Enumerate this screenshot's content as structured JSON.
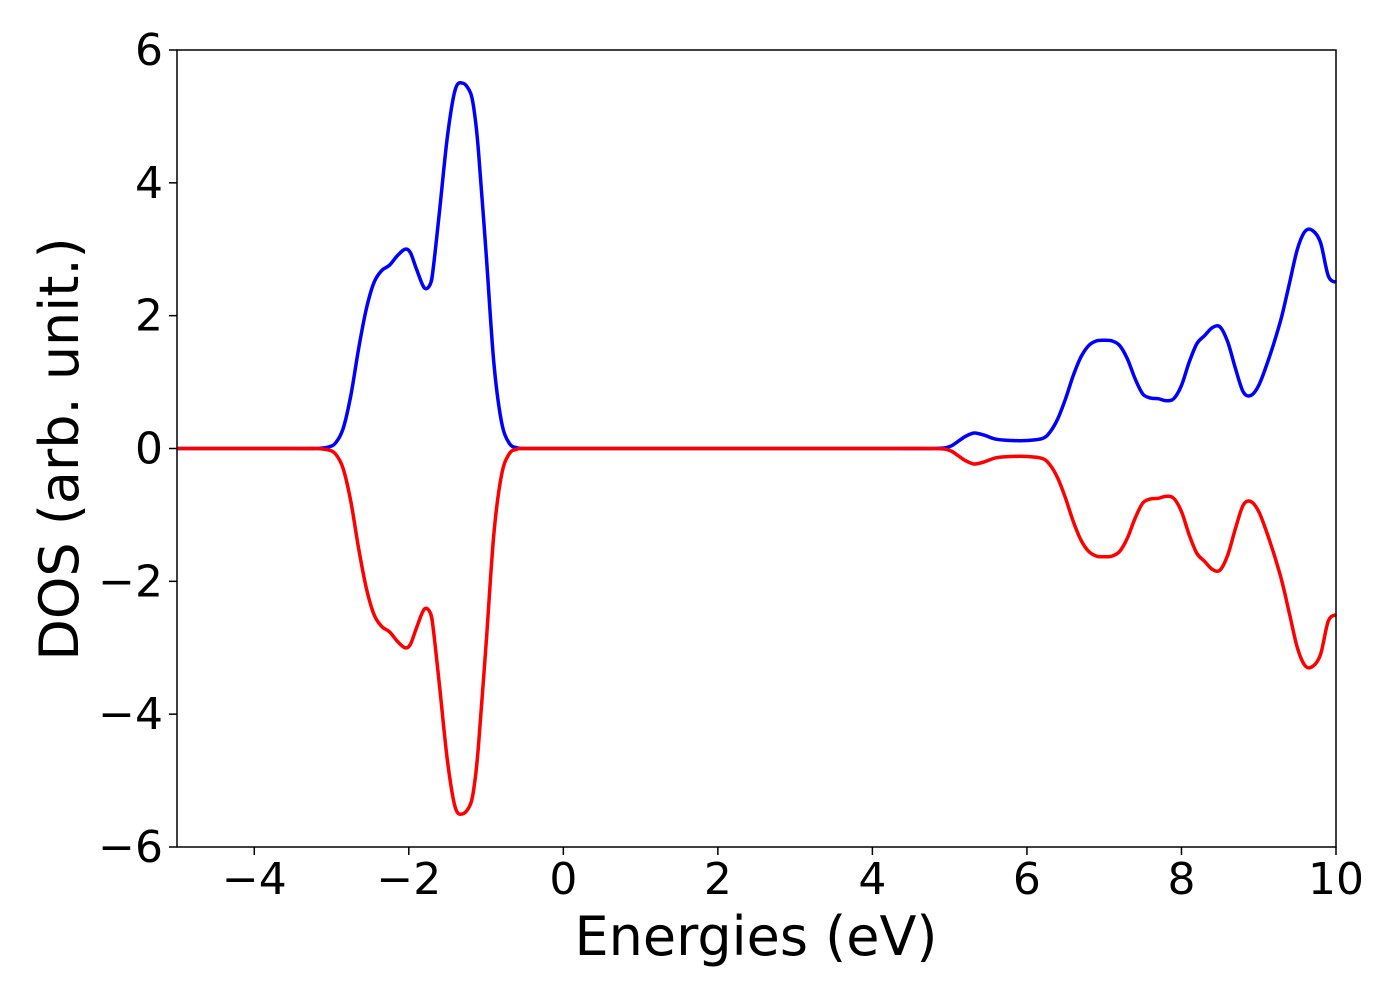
{
  "chart_data": {
    "type": "line",
    "title": "",
    "xlabel": "Energies (eV)",
    "ylabel": "DOS (arb. unit.)",
    "xlim": [
      -5,
      10
    ],
    "ylim": [
      -6,
      6
    ],
    "xticks": [
      -4,
      -2,
      0,
      2,
      4,
      6,
      8,
      10
    ],
    "xtick_labels": [
      "−4",
      "−2",
      "0",
      "2",
      "4",
      "6",
      "8",
      "10"
    ],
    "yticks": [
      -6,
      -4,
      -2,
      0,
      2,
      4,
      6
    ],
    "ytick_labels": [
      "−6",
      "−4",
      "−2",
      "0",
      "2",
      "4",
      "6"
    ],
    "grid": false,
    "legend": "none",
    "series": [
      {
        "color": "#0000ff",
        "x": [
          -5.0,
          -3.5,
          -3.2,
          -3.05,
          -2.95,
          -2.85,
          -2.75,
          -2.65,
          -2.55,
          -2.45,
          -2.35,
          -2.25,
          -2.15,
          -2.05,
          -1.98,
          -1.9,
          -1.8,
          -1.72,
          -1.68,
          -1.6,
          -1.5,
          -1.4,
          -1.3,
          -1.2,
          -1.15,
          -1.1,
          -1.0,
          -0.9,
          -0.8,
          -0.7,
          -0.6,
          -0.5,
          -0.4,
          0.0,
          2.0,
          4.0,
          4.8,
          5.0,
          5.1,
          5.2,
          5.3,
          5.35,
          5.45,
          5.6,
          5.8,
          6.0,
          6.2,
          6.3,
          6.4,
          6.5,
          6.6,
          6.7,
          6.8,
          6.9,
          7.0,
          7.1,
          7.2,
          7.3,
          7.4,
          7.5,
          7.6,
          7.7,
          7.8,
          7.9,
          8.0,
          8.1,
          8.2,
          8.3,
          8.4,
          8.5,
          8.6,
          8.7,
          8.8,
          8.9,
          9.0,
          9.1,
          9.2,
          9.3,
          9.4,
          9.5,
          9.6,
          9.7,
          9.8,
          9.9,
          10.0
        ],
        "y": [
          0.0,
          0.0,
          0.0,
          0.02,
          0.08,
          0.3,
          0.8,
          1.5,
          2.1,
          2.5,
          2.68,
          2.76,
          2.9,
          3.0,
          2.95,
          2.7,
          2.42,
          2.48,
          2.75,
          3.6,
          4.7,
          5.4,
          5.5,
          5.35,
          5.05,
          4.5,
          2.95,
          1.3,
          0.4,
          0.08,
          0.01,
          0.0,
          0.0,
          0.0,
          0.0,
          0.0,
          0.0,
          0.03,
          0.1,
          0.18,
          0.23,
          0.23,
          0.2,
          0.14,
          0.12,
          0.12,
          0.15,
          0.25,
          0.45,
          0.75,
          1.1,
          1.38,
          1.55,
          1.62,
          1.63,
          1.62,
          1.55,
          1.35,
          1.05,
          0.82,
          0.76,
          0.75,
          0.72,
          0.75,
          0.95,
          1.3,
          1.58,
          1.7,
          1.82,
          1.83,
          1.6,
          1.2,
          0.85,
          0.8,
          0.95,
          1.25,
          1.6,
          2.0,
          2.5,
          3.0,
          3.27,
          3.28,
          3.1,
          2.6,
          2.5
        ]
      },
      {
        "color": "#ff0000",
        "x": [
          -5.0,
          -3.5,
          -3.2,
          -3.05,
          -2.95,
          -2.85,
          -2.75,
          -2.65,
          -2.55,
          -2.45,
          -2.35,
          -2.25,
          -2.15,
          -2.05,
          -1.98,
          -1.9,
          -1.8,
          -1.72,
          -1.68,
          -1.6,
          -1.5,
          -1.4,
          -1.3,
          -1.2,
          -1.15,
          -1.1,
          -1.0,
          -0.9,
          -0.8,
          -0.7,
          -0.6,
          -0.5,
          -0.4,
          0.0,
          2.0,
          4.0,
          4.8,
          5.0,
          5.1,
          5.2,
          5.3,
          5.35,
          5.45,
          5.6,
          5.8,
          6.0,
          6.2,
          6.3,
          6.4,
          6.5,
          6.6,
          6.7,
          6.8,
          6.9,
          7.0,
          7.1,
          7.2,
          7.3,
          7.4,
          7.5,
          7.6,
          7.7,
          7.8,
          7.9,
          8.0,
          8.1,
          8.2,
          8.3,
          8.4,
          8.5,
          8.6,
          8.7,
          8.8,
          8.9,
          9.0,
          9.1,
          9.2,
          9.3,
          9.4,
          9.5,
          9.6,
          9.7,
          9.8,
          9.9,
          10.0
        ],
        "y": [
          0.0,
          0.0,
          0.0,
          -0.02,
          -0.08,
          -0.3,
          -0.8,
          -1.5,
          -2.1,
          -2.5,
          -2.68,
          -2.76,
          -2.9,
          -3.0,
          -2.95,
          -2.7,
          -2.42,
          -2.48,
          -2.75,
          -3.6,
          -4.7,
          -5.4,
          -5.5,
          -5.35,
          -5.05,
          -4.5,
          -2.95,
          -1.3,
          -0.4,
          -0.08,
          -0.01,
          0.0,
          0.0,
          0.0,
          0.0,
          0.0,
          0.0,
          -0.03,
          -0.1,
          -0.18,
          -0.23,
          -0.23,
          -0.2,
          -0.14,
          -0.12,
          -0.12,
          -0.15,
          -0.25,
          -0.45,
          -0.75,
          -1.1,
          -1.38,
          -1.55,
          -1.62,
          -1.63,
          -1.62,
          -1.55,
          -1.35,
          -1.05,
          -0.82,
          -0.76,
          -0.75,
          -0.72,
          -0.75,
          -0.95,
          -1.3,
          -1.58,
          -1.7,
          -1.82,
          -1.83,
          -1.6,
          -1.2,
          -0.85,
          -0.8,
          -0.95,
          -1.25,
          -1.6,
          -2.0,
          -2.5,
          -3.0,
          -3.27,
          -3.28,
          -3.1,
          -2.6,
          -2.5
        ]
      }
    ]
  }
}
